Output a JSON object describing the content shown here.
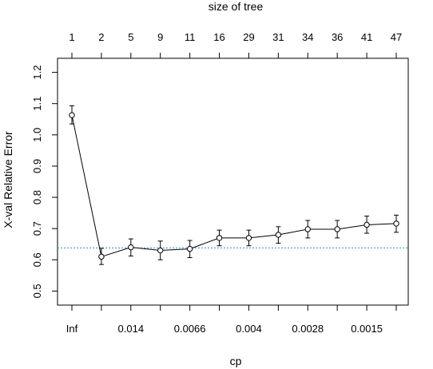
{
  "chart_data": {
    "type": "line",
    "top_axis_title": "size of tree",
    "xlabel": "cp",
    "ylabel": "X-val Relative Error",
    "size_of_tree": [
      "1",
      "2",
      "5",
      "9",
      "11",
      "16",
      "29",
      "31",
      "34",
      "36",
      "41",
      "47"
    ],
    "cp_labels": [
      "Inf",
      "",
      "0.014",
      "",
      "0.0066",
      "",
      "0.004",
      "",
      "0.0028",
      "",
      "0.0015",
      ""
    ],
    "y_ticks": [
      "0.5",
      "0.6",
      "0.7",
      "0.8",
      "0.9",
      "1.0",
      "1.1",
      "1.2"
    ],
    "ylim": [
      0.455,
      1.245
    ],
    "values": [
      1.063,
      0.61,
      0.64,
      0.63,
      0.635,
      0.67,
      0.67,
      0.68,
      0.698,
      0.698,
      0.712,
      0.716
    ],
    "error_low": [
      1.035,
      0.585,
      0.612,
      0.6,
      0.607,
      0.645,
      0.645,
      0.653,
      0.67,
      0.67,
      0.685,
      0.688
    ],
    "error_high": [
      1.093,
      0.637,
      0.667,
      0.66,
      0.662,
      0.695,
      0.695,
      0.706,
      0.726,
      0.726,
      0.74,
      0.743
    ],
    "reference_line": 0.638,
    "reference_color": "#2a9aa5",
    "line_color": "#000000"
  }
}
